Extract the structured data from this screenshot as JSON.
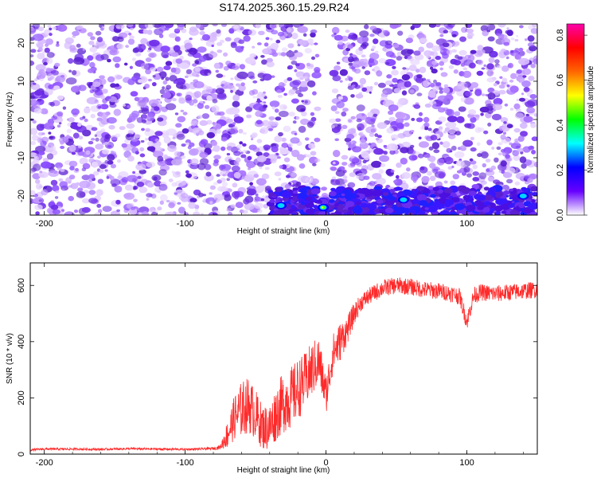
{
  "figure": {
    "title": "S174.2025.360.15.29.R24"
  },
  "chart_data": [
    {
      "type": "heatmap",
      "title": "S174.2025.360.15.29.R24",
      "xlabel": "Height of straight line (km)",
      "ylabel": "Frequency (Hz)",
      "xlim": [
        -210,
        150
      ],
      "ylim": [
        -25,
        25
      ],
      "x_ticks": [
        -200,
        -100,
        0,
        100
      ],
      "x_tick_labels": [
        "-200",
        "-100",
        "0",
        "100"
      ],
      "y_ticks": [
        20,
        10,
        0,
        -10,
        -20
      ],
      "y_tick_labels": [
        "20",
        "10",
        "0",
        "-10",
        "-20"
      ],
      "colorbar": {
        "label": "Normalized spectral amplitude",
        "range": [
          0,
          0.85
        ],
        "ticks": [
          0,
          0.2,
          0.4,
          0.6,
          0.8
        ],
        "tick_labels": [
          "0.0",
          "0.2",
          "0.4",
          "0.6",
          "0.8"
        ],
        "colormap": [
          "#ffffff",
          "#6600ff",
          "#0000ff",
          "#00ffff",
          "#00ff00",
          "#ffff00",
          "#ff6600",
          "#ff0000",
          "#ff00aa"
        ]
      },
      "grid": false,
      "features": [
        {
          "name": "low-frequency band",
          "x_range": [
            -40,
            150
          ],
          "y_range": [
            -25,
            -18
          ],
          "level": 0.25
        },
        {
          "name": "gap",
          "x_range": [
            -5,
            5
          ],
          "y_range": [
            -18,
            25
          ],
          "level": 0.0
        },
        {
          "name": "hot spot 1",
          "x": -32,
          "y": -22.5,
          "level": 0.4
        },
        {
          "name": "hot spot 2",
          "x": -2,
          "y": -23,
          "level": 0.55
        },
        {
          "name": "hot spot 3",
          "x": 55,
          "y": -21,
          "level": 0.35
        },
        {
          "name": "hot spot 4",
          "x": 140,
          "y": -20,
          "level": 0.3
        }
      ]
    },
    {
      "type": "line",
      "title": "",
      "xlabel": "Height of straight line (km)",
      "ylabel": "SNR (10 * v/v)",
      "xlim": [
        -210,
        150
      ],
      "ylim": [
        0,
        680
      ],
      "x_ticks": [
        -200,
        -100,
        0,
        100
      ],
      "x_tick_labels": [
        "-200",
        "-100",
        "0",
        "100"
      ],
      "y_ticks": [
        0,
        200,
        400,
        600
      ],
      "y_tick_labels": [
        "0",
        "200",
        "400",
        "600"
      ],
      "grid": false,
      "series_color": "#ff2a2a",
      "series": [
        {
          "x": [
            -210,
            -200,
            -180,
            -160,
            -140,
            -120,
            -100,
            -90,
            -80,
            -75,
            -70,
            -65,
            -60,
            -55,
            -50,
            -45,
            -40,
            -35,
            -30,
            -25,
            -20,
            -15,
            -10,
            -5,
            0,
            5,
            10,
            15,
            20,
            25,
            30,
            40,
            50,
            60,
            70,
            80,
            90,
            95,
            100,
            105,
            110,
            120,
            130,
            140,
            150
          ],
          "y": [
            15,
            18,
            18,
            17,
            19,
            18,
            17,
            18,
            20,
            25,
            70,
            130,
            160,
            175,
            140,
            95,
            95,
            150,
            185,
            200,
            230,
            260,
            300,
            330,
            210,
            360,
            400,
            440,
            500,
            540,
            560,
            590,
            600,
            595,
            585,
            580,
            570,
            560,
            470,
            565,
            575,
            570,
            575,
            580,
            585
          ],
          "noise": [
            4,
            4,
            4,
            4,
            4,
            4,
            4,
            4,
            5,
            8,
            50,
            80,
            100,
            100,
            90,
            80,
            85,
            100,
            110,
            110,
            110,
            100,
            100,
            90,
            70,
            70,
            70,
            50,
            40,
            30,
            30,
            30,
            30,
            30,
            30,
            30,
            30,
            30,
            30,
            30,
            30,
            30,
            30,
            30,
            30
          ]
        }
      ]
    }
  ]
}
